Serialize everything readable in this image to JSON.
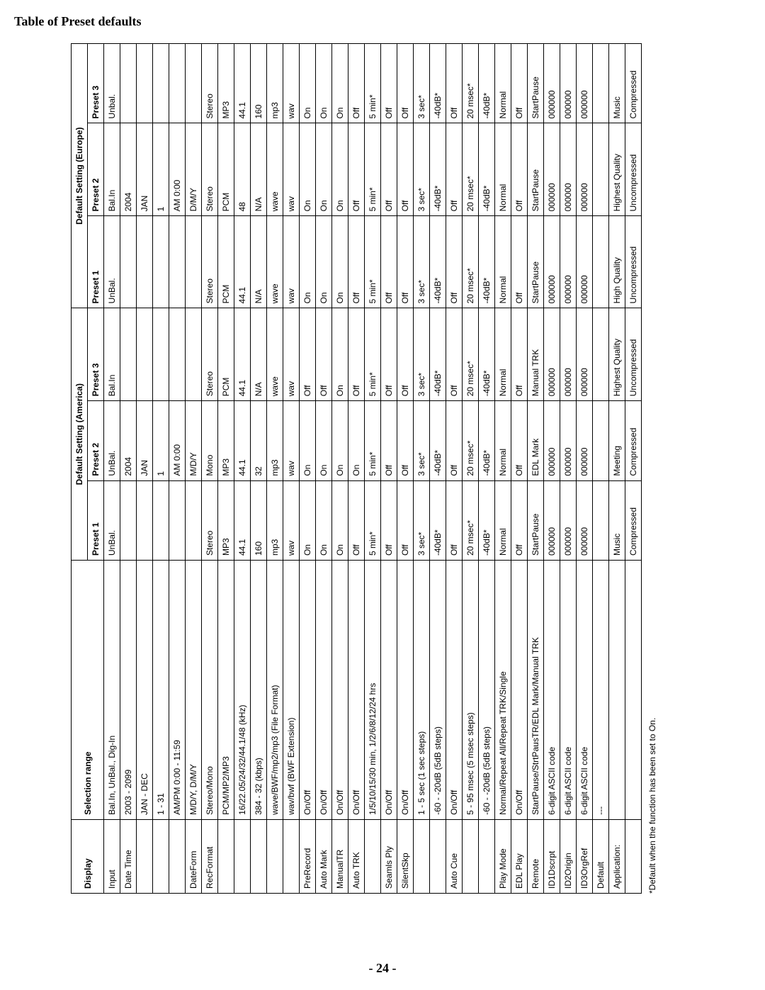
{
  "title": "Table of Preset defaults",
  "pageNumber": "- 24 -",
  "footnote": "*Default when the function has been set to On.",
  "headers": {
    "display": "Display",
    "selection": "Selection range",
    "groupA": "Default Setting (America)",
    "groupB": "Default Setting (Europe)",
    "p1": "Preset 1",
    "p2": "Preset 2",
    "p3": "Preset 3"
  },
  "rows": [
    {
      "display": "Input",
      "sel": "Bal.In, UnBal., Dig-In",
      "a1": "UnBal.",
      "a2": "UnBal.",
      "a3": "Bal.In",
      "b1": "UnBal.",
      "b2": "Bal.In",
      "b3": "Unbal."
    },
    {
      "display": "Date Time",
      "sel": "2003 - 2099",
      "a1": "",
      "a2": "2004",
      "a3": "",
      "b1": "",
      "b2": "2004",
      "b3": ""
    },
    {
      "display": "",
      "sel": "JAN - DEC",
      "a1": "",
      "a2": "JAN",
      "a3": "",
      "b1": "",
      "b2": "JAN",
      "b3": ""
    },
    {
      "display": "",
      "sel": "1 - 31",
      "a1": "",
      "a2": "1",
      "a3": "",
      "b1": "",
      "b2": "1",
      "b3": ""
    },
    {
      "display": "",
      "sel": "AM/PM 0:00 - 11:59",
      "a1": "",
      "a2": "AM 0:00",
      "a3": "",
      "b1": "",
      "b2": "AM 0:00",
      "b3": ""
    },
    {
      "display": "DateForm",
      "sel": "M/D/Y, D/M/Y",
      "a1": "",
      "a2": "M/D/Y",
      "a3": "",
      "b1": "",
      "b2": "D/M/Y",
      "b3": ""
    },
    {
      "display": "RecFormat",
      "sel": "Stereo/Mono",
      "a1": "Stereo",
      "a2": "Mono",
      "a3": "Stereo",
      "b1": "Stereo",
      "b2": "Stereo",
      "b3": "Stereo"
    },
    {
      "display": "",
      "sel": "PCM/MP2/MP3",
      "a1": "MP3",
      "a2": "MP3",
      "a3": "PCM",
      "b1": "PCM",
      "b2": "PCM",
      "b3": "MP3"
    },
    {
      "display": "",
      "sel": "16/22.05/24/32/44.1/48 (kHz)",
      "a1": "44.1",
      "a2": "44.1",
      "a3": "44.1",
      "b1": "44.1",
      "b2": "48",
      "b3": "44.1"
    },
    {
      "display": "",
      "sel": "384 - 32 (kbps)",
      "a1": "160",
      "a2": "32",
      "a3": "N/A",
      "b1": "N/A",
      "b2": "N/A",
      "b3": "160"
    },
    {
      "display": "",
      "sel": "wave/BWF/mp2/mp3 (File Format)",
      "a1": "mp3",
      "a2": "mp3",
      "a3": "wave",
      "b1": "wave",
      "b2": "wave",
      "b3": "mp3"
    },
    {
      "display": "",
      "sel": "wav/bwf (BWF Extension)",
      "a1": "wav",
      "a2": "wav",
      "a3": "wav",
      "b1": "wav",
      "b2": "wav",
      "b3": "wav"
    },
    {
      "display": "PreRecord",
      "sel": "On/Off",
      "a1": "On",
      "a2": "On",
      "a3": "Off",
      "b1": "On",
      "b2": "On",
      "b3": "On"
    },
    {
      "display": "Auto Mark",
      "sel": "On/Off",
      "a1": "On",
      "a2": "On",
      "a3": "Off",
      "b1": "On",
      "b2": "On",
      "b3": "On"
    },
    {
      "display": "ManualTR",
      "sel": "On/Off",
      "a1": "On",
      "a2": "On",
      "a3": "On",
      "b1": "On",
      "b2": "On",
      "b3": "On"
    },
    {
      "display": "Auto TRK",
      "sel": "On/Off",
      "a1": "Off",
      "a2": "On",
      "a3": "Off",
      "b1": "Off",
      "b2": "Off",
      "b3": "Off"
    },
    {
      "display": "",
      "sel": "1/5/10/15/30 min, 1/2/6/8/12/24 hrs",
      "a1": "5 min*",
      "a2": "5 min*",
      "a3": "5 min*",
      "b1": "5 min*",
      "b2": "5 min*",
      "b3": "5 min*"
    },
    {
      "display": "Seamls Ply",
      "sel": "On/Off",
      "a1": "Off",
      "a2": "Off",
      "a3": "Off",
      "b1": "Off",
      "b2": "Off",
      "b3": "Off"
    },
    {
      "display": "SilentSkp",
      "sel": "On/Off",
      "a1": "Off",
      "a2": "Off",
      "a3": "Off",
      "b1": "Off",
      "b2": "Off",
      "b3": "Off"
    },
    {
      "display": "",
      "sel": "1 - 5 sec (1 sec steps)",
      "a1": "3 sec*",
      "a2": "3 sec*",
      "a3": "3 sec*",
      "b1": "3 sec*",
      "b2": "3 sec*",
      "b3": "3 sec*"
    },
    {
      "display": "",
      "sel": "-60 - -20dB (5dB steps)",
      "a1": "-40dB*",
      "a2": "-40dB*",
      "a3": "-40dB*",
      "b1": "-40dB*",
      "b2": "-40dB*",
      "b3": "-40dB*"
    },
    {
      "display": "Auto Cue",
      "sel": "On/Off",
      "a1": "Off",
      "a2": "Off",
      "a3": "Off",
      "b1": "Off",
      "b2": "Off",
      "b3": "Off"
    },
    {
      "display": "",
      "sel": "5 - 95 msec (5 msec steps)",
      "a1": "20 msec*",
      "a2": "20 msec*",
      "a3": "20 msec*",
      "b1": "20 msec*",
      "b2": "20 msec*",
      "b3": "20 msec*"
    },
    {
      "display": "",
      "sel": "-60 - -20dB (5dB steps)",
      "a1": "-40dB*",
      "a2": "-40dB*",
      "a3": "-40dB*",
      "b1": "-40dB*",
      "b2": "-40dB*",
      "b3": "-40dB*"
    },
    {
      "display": "Play Mode",
      "sel": "Normal/Repeat All/Repeat TRK/Single",
      "a1": "Normal",
      "a2": "Normal",
      "a3": "Normal",
      "b1": "Normal",
      "b2": "Normal",
      "b3": "Normal"
    },
    {
      "display": "EDL Play",
      "sel": "On/Off",
      "a1": "Off",
      "a2": "Off",
      "a3": "Off",
      "b1": "Off",
      "b2": "Off",
      "b3": "Off"
    },
    {
      "display": "Remote",
      "sel": "StartPause/StrtPausTR/EDL Mark/Manual TRK",
      "a1": "StartPause",
      "a2": "EDL Mark",
      "a3": "Manual TRK",
      "b1": "StartPause",
      "b2": "StartPause",
      "b3": "StartPause"
    },
    {
      "display": "ID1Dscrpt",
      "sel": "6-digit ASCII code",
      "a1": "000000",
      "a2": "000000",
      "a3": "000000",
      "b1": "000000",
      "b2": "000000",
      "b3": "000000"
    },
    {
      "display": "ID2Origin",
      "sel": "6-digit ASCII code",
      "a1": "000000",
      "a2": "000000",
      "a3": "000000",
      "b1": "000000",
      "b2": "000000",
      "b3": "000000"
    },
    {
      "display": "ID3OrgRef",
      "sel": "6-digit ASCII code",
      "a1": "000000",
      "a2": "000000",
      "a3": "000000",
      "b1": "000000",
      "b2": "000000",
      "b3": "000000"
    },
    {
      "display": "Default",
      "sel": "---",
      "a1": "",
      "a2": "",
      "a3": "",
      "b1": "",
      "b2": "",
      "b3": ""
    },
    {
      "display": "Application:",
      "sel": "",
      "a1": "Music",
      "a2": "Meeting",
      "a3": "Highest Quality",
      "b1": "High Quality",
      "b2": "Highest Quality",
      "b3": "Music"
    },
    {
      "display": "",
      "sel": "",
      "a1": "Compressed",
      "a2": "Compressed",
      "a3": "Uncompressed",
      "b1": "Uncompressed",
      "b2": "Uncompressed",
      "b3": "Compressed"
    }
  ]
}
